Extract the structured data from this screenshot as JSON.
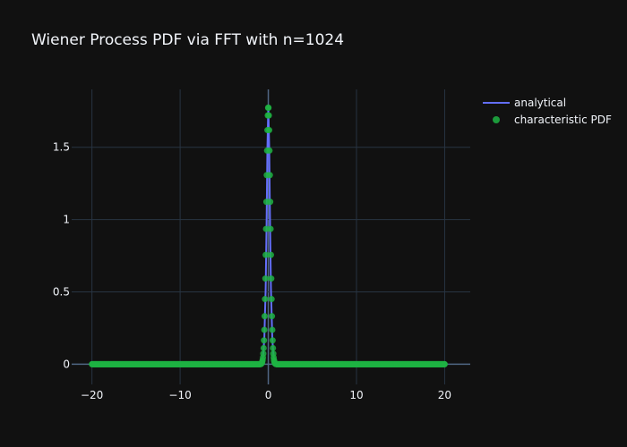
{
  "chart_data": {
    "type": "scatter",
    "title": "Wiener Process PDF via FFT with n=1024",
    "xlabel": "",
    "ylabel": "",
    "xlim": [
      -22.3,
      22.9
    ],
    "ylim": [
      -0.14,
      1.9
    ],
    "x_ticks": [
      -20,
      -10,
      0,
      10,
      20
    ],
    "y_ticks": [
      0,
      0.5,
      1,
      1.5
    ],
    "x_tick_labels": [
      "−20",
      "−10",
      "0",
      "10",
      "20"
    ],
    "y_tick_labels": [
      "0",
      "0.5",
      "1",
      "1.5"
    ],
    "grid": true,
    "legend_position": "top-right outside",
    "series": [
      {
        "name": "analytical",
        "kind": "line",
        "color": "#636efa",
        "x": [
          -20,
          -1,
          -0.78,
          -0.6,
          -0.45,
          -0.3,
          -0.2,
          -0.1,
          0,
          0.1,
          0.2,
          0.3,
          0.45,
          0.6,
          0.78,
          1,
          20
        ],
        "y": [
          0,
          0.0,
          0.01,
          0.05,
          0.18,
          0.52,
          0.95,
          1.5,
          1.78,
          1.5,
          0.95,
          0.52,
          0.18,
          0.05,
          0.01,
          0.0,
          0
        ]
      },
      {
        "name": "characteristic PDF",
        "kind": "markers",
        "color": "#1fb343",
        "x_range": [
          -20,
          20
        ],
        "sigma": 0.224,
        "peak": 1.78
      }
    ]
  }
}
